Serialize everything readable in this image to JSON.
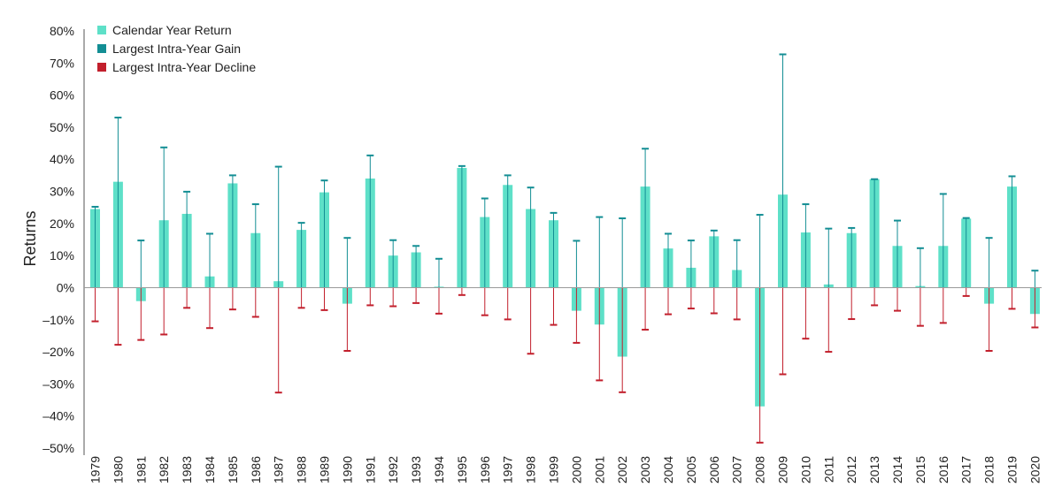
{
  "chart_data": {
    "type": "bar",
    "title": "",
    "xlabel": "",
    "ylabel": "Returns",
    "ylim": [
      -50,
      80
    ],
    "yticks": [
      80,
      70,
      60,
      50,
      40,
      30,
      20,
      10,
      0,
      -10,
      -20,
      -30,
      -40,
      -50
    ],
    "ytick_labels": [
      "80%",
      "70%",
      "60%",
      "50%",
      "40%",
      "30%",
      "20%",
      "10%",
      "0%",
      "–10%",
      "–20%",
      "–30%",
      "–40%",
      "–50%"
    ],
    "legend_position": "top-left",
    "categories": [
      "1979",
      "1980",
      "1981",
      "1982",
      "1983",
      "1984",
      "1985",
      "1986",
      "1987",
      "1988",
      "1989",
      "1990",
      "1991",
      "1992",
      "1993",
      "1994",
      "1995",
      "1996",
      "1997",
      "1998",
      "1999",
      "2000",
      "2001",
      "2002",
      "2003",
      "2004",
      "2005",
      "2006",
      "2007",
      "2008",
      "2009",
      "2010",
      "2011",
      "2012",
      "2013",
      "2014",
      "2015",
      "2016",
      "2017",
      "2018",
      "2019",
      "2020"
    ],
    "series": [
      {
        "name": "Calendar Year Return",
        "color": "#5ee0c8",
        "values": [
          24.5,
          33,
          -4.2,
          21,
          23,
          3.5,
          32.5,
          17,
          2,
          18,
          29.7,
          -5,
          34,
          10,
          11,
          0.3,
          37.3,
          22,
          32,
          24.5,
          21,
          -7.2,
          -11.5,
          -21.5,
          31.5,
          12.2,
          6.2,
          16,
          5.5,
          -37,
          29,
          17.2,
          1,
          17,
          33.8,
          13,
          0.5,
          13,
          21.5,
          -5,
          31.5,
          -8.2
        ]
      },
      {
        "name": "Largest Intra-Year Gain",
        "color": "#138e94",
        "values": [
          25.2,
          53,
          14.7,
          43.7,
          29.9,
          16.8,
          35,
          26,
          37.7,
          20.2,
          33.4,
          15.5,
          41.2,
          14.8,
          13,
          9,
          37.9,
          27.8,
          35,
          31.2,
          23.3,
          14.6,
          22,
          21.6,
          43.3,
          16.8,
          14.7,
          17.8,
          14.8,
          22.7,
          72.7,
          26,
          18.4,
          18.6,
          33.8,
          20.9,
          12.3,
          29.2,
          21.7,
          15.5,
          34.7,
          5.3
        ]
      },
      {
        "name": "Largest Intra-Year Decline",
        "color": "#c21f2c",
        "values": [
          -10.5,
          -17.8,
          -16.3,
          -14.6,
          -6.3,
          -12.6,
          -6.8,
          -9.1,
          -32.7,
          -6.3,
          -7,
          -19.7,
          -5.5,
          -5.8,
          -4.8,
          -8.1,
          -2.3,
          -8.6,
          -9.9,
          -20.6,
          -11.6,
          -17.2,
          -28.9,
          -32.6,
          -13.1,
          -8.3,
          -6.5,
          -8,
          -9.9,
          -48.3,
          -27,
          -15.9,
          -20,
          -9.8,
          -5.5,
          -7.2,
          -11.9,
          -11,
          -2.6,
          -19.7,
          -6.6,
          -12.4
        ]
      }
    ]
  }
}
